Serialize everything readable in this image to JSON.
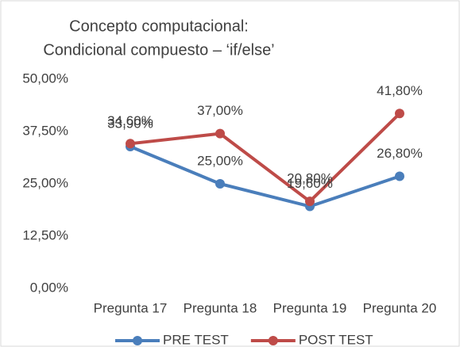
{
  "chart_data": {
    "type": "line",
    "title": [
      "Concepto computacional:",
      "Condicional compuesto – ‘if/else’"
    ],
    "categories": [
      "Pregunta 17",
      "Pregunta 18",
      "Pregunta 19",
      "Pregunta 20"
    ],
    "series": [
      {
        "name": "PRE TEST",
        "color": "#4a7ebb",
        "values": [
          33.9,
          25.0,
          19.6,
          26.8
        ],
        "value_labels": [
          "33,90%",
          "25,00%",
          "19,60%",
          "26,80%"
        ]
      },
      {
        "name": "POST TEST",
        "color": "#be4b48",
        "values": [
          34.6,
          37.0,
          20.8,
          41.8
        ],
        "value_labels": [
          "34,60%",
          "37,00%",
          "20,80%",
          "41,80%"
        ]
      }
    ],
    "ylim": [
      0,
      50
    ],
    "yticks": [
      {
        "value": 0,
        "label": "0,00%"
      },
      {
        "value": 12.5,
        "label": "12,50%"
      },
      {
        "value": 25,
        "label": "25,00%"
      },
      {
        "value": 37.5,
        "label": "37,50%"
      },
      {
        "value": 50,
        "label": "50,00%"
      }
    ],
    "legend": "bottom"
  }
}
